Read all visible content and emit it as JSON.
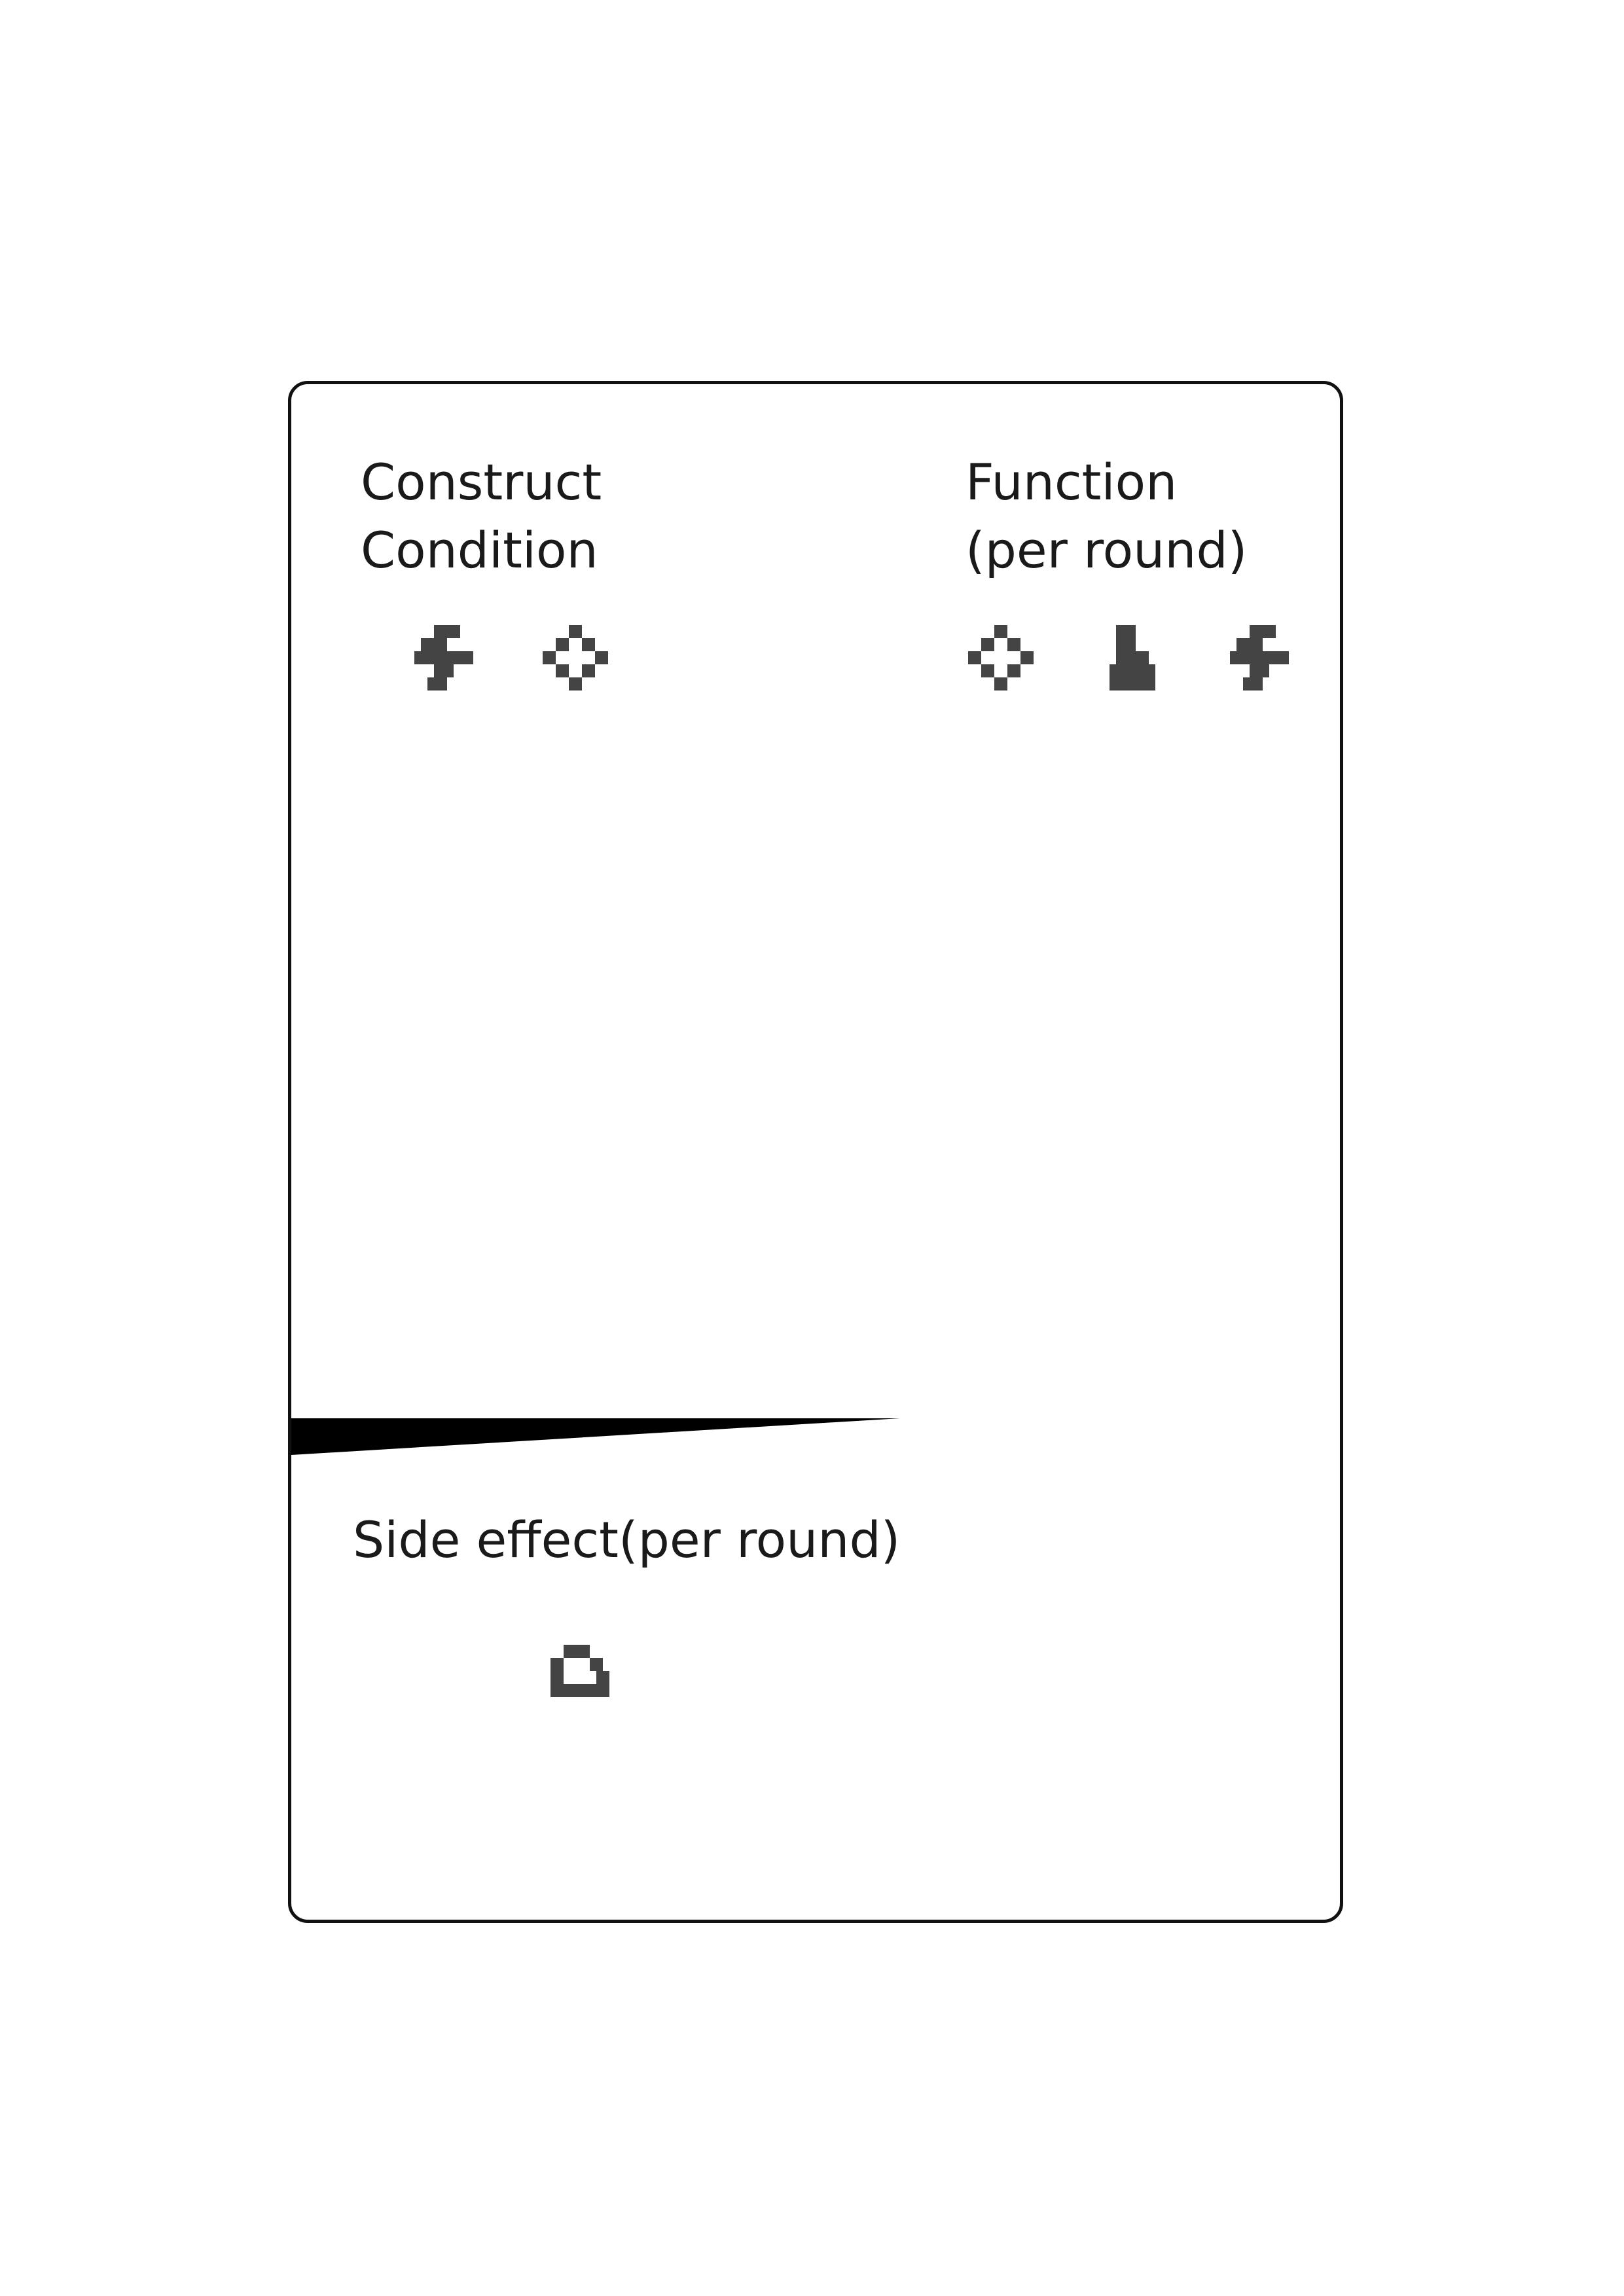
{
  "card": {
    "construct_condition": {
      "label": "Construct\nCondition",
      "icons": [
        "bolt-icon",
        "gear-icon"
      ]
    },
    "function": {
      "label": "Function\n(per round)",
      "icons": [
        "gear-icon",
        "worker-icon",
        "bolt-icon"
      ]
    },
    "side_effect": {
      "label": "Side effect(per round)",
      "icons": [
        "cloud-icon"
      ]
    }
  },
  "colors": {
    "icon": "#444444",
    "border": "#111111",
    "divider": "#000000"
  }
}
